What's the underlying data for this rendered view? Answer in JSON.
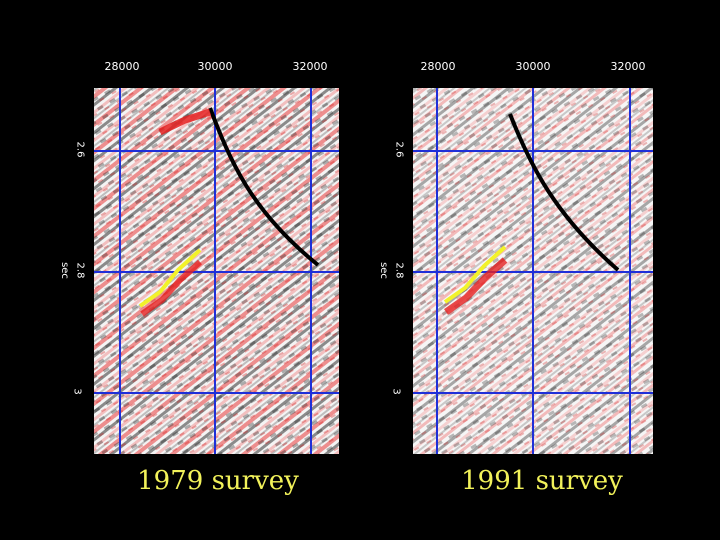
{
  "panels": [
    {
      "id": "left",
      "caption": "1979 survey",
      "x_ticks": [
        "28000",
        "30000",
        "32000"
      ],
      "y_ticks": [
        "2.6",
        "2.8",
        "3"
      ],
      "y_unit": "sec"
    },
    {
      "id": "right",
      "caption": "1991 survey",
      "x_ticks": [
        "28000",
        "30000",
        "32000"
      ],
      "y_ticks": [
        "2.6",
        "2.8",
        "3"
      ],
      "y_unit": "sec"
    }
  ],
  "colors": {
    "grid": "#1f2fd8",
    "positive": "#e52020",
    "negative": "#111111",
    "highlight_line": "#f2f22a",
    "fault_line": "#000000",
    "caption": "#f2f25a"
  }
}
